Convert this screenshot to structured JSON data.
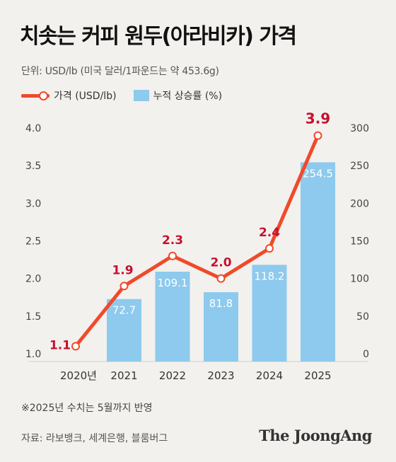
{
  "title": "치솟는 커피 원두(아라비카) 가격",
  "unit_note": "단위: USD/lb (미국 달러/1파운드는 약 453.6g)",
  "legend": {
    "line_label": "가격 (USD/lb)",
    "bar_label": "누적 상승률 (%)"
  },
  "footnote": "※2025년 수치는 5월까지 반영",
  "source": "자료: 라보뱅크, 세계은행, 블룸버그",
  "brand": "The JoongAng",
  "colors": {
    "line": "#f04a2a",
    "bar": "#8dcaed",
    "line_label": "#c8102e",
    "bar_label": "#ffffff",
    "axis_text": "#444444",
    "grid": "#cfcfcf"
  },
  "chart_data": {
    "type": "bar+line",
    "categories": [
      "2020년",
      "2021",
      "2022",
      "2023",
      "2024",
      "2025"
    ],
    "series": [
      {
        "name": "가격 (USD/lb)",
        "type": "line",
        "axis": "left",
        "values": [
          1.1,
          1.9,
          2.3,
          2.0,
          2.4,
          3.9
        ],
        "labels": [
          "1.1",
          "1.9",
          "2.3",
          "2.0",
          "2.4",
          "3.9"
        ]
      },
      {
        "name": "누적 상승률 (%)",
        "type": "bar",
        "axis": "right",
        "values": [
          null,
          72.7,
          109.1,
          81.8,
          118.2,
          254.5
        ],
        "labels": [
          "",
          "72.7",
          "109.1",
          "81.8",
          "118.2",
          "254.5"
        ]
      }
    ],
    "y_left": {
      "range": [
        1.0,
        4.0
      ],
      "ticks": [
        "1.0",
        "1.5",
        "2.0",
        "2.5",
        "3.0",
        "3.5",
        "4.0"
      ]
    },
    "y_right": {
      "range": [
        0,
        300
      ],
      "ticks": [
        "0",
        "50",
        "100",
        "150",
        "200",
        "250",
        "300"
      ]
    },
    "grid": false
  }
}
